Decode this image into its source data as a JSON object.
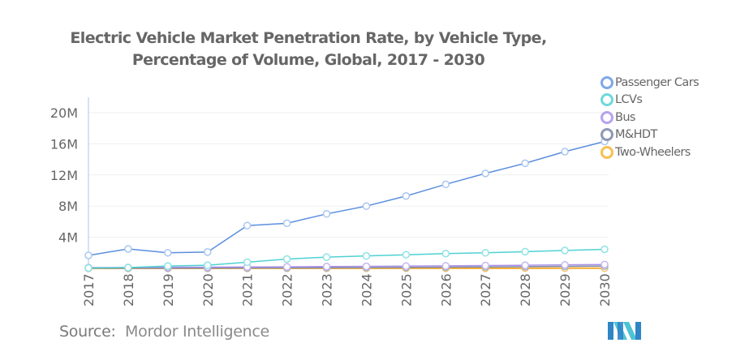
{
  "chart_data": {
    "type": "line",
    "title": "Electric Vehicle Market Penetration Rate, by Vehicle Type,",
    "subtitle": "Percentage of Volume, Global, 2017 - 2030",
    "xlabel": "",
    "ylabel": "",
    "x": [
      "2017",
      "2018",
      "2019",
      "2020",
      "2021",
      "2022",
      "2023",
      "2024",
      "2025",
      "2026",
      "2027",
      "2028",
      "2029",
      "2030"
    ],
    "yticks": [
      4000000,
      8000000,
      12000000,
      16000000,
      20000000
    ],
    "ytick_labels": [
      "4M",
      "8M",
      "12M",
      "16M",
      "20M"
    ],
    "ylim": [
      0,
      22000000
    ],
    "grid": true,
    "legend_position": "right",
    "series": [
      {
        "name": "Passenger Cars",
        "color": "#5b8ede",
        "marker_color": "#a9c6f0",
        "values": [
          1670000,
          2500000,
          2000000,
          2100000,
          5500000,
          5800000,
          7000000,
          8000000,
          9300000,
          10800000,
          12200000,
          13500000,
          15000000,
          16300000
        ]
      },
      {
        "name": "LCVs",
        "color": "#4fd1d3",
        "marker_color": "#8ee3e4",
        "values": [
          50000,
          100000,
          300000,
          400000,
          800000,
          1200000,
          1450000,
          1600000,
          1750000,
          1900000,
          2000000,
          2150000,
          2300000,
          2450000
        ]
      },
      {
        "name": "Bus",
        "color": "#a991e8",
        "marker_color": "#c6b6f0",
        "values": [
          100000,
          120000,
          140000,
          160000,
          180000,
          200000,
          230000,
          260000,
          290000,
          320000,
          360000,
          400000,
          450000,
          500000
        ]
      },
      {
        "name": "M&HDT",
        "color": "#7f8aa8",
        "marker_color": "#a6adc2",
        "values": [
          20000,
          25000,
          30000,
          40000,
          50000,
          60000,
          80000,
          100000,
          120000,
          150000,
          180000,
          220000,
          260000,
          300000
        ]
      },
      {
        "name": "Two-Wheelers",
        "color": "#f5ab2e",
        "marker_color": "#f7c46e",
        "values": [
          5000,
          5000,
          6000,
          6000,
          7000,
          8000,
          9000,
          10000,
          12000,
          14000,
          16000,
          18000,
          20000,
          22000
        ]
      }
    ]
  },
  "legend": {
    "items": [
      {
        "label": "Passenger Cars",
        "color": "#7ea8e8"
      },
      {
        "label": "LCVs",
        "color": "#6fd8d9"
      },
      {
        "label": "Bus",
        "color": "#b6a3ee"
      },
      {
        "label": "M&HDT",
        "color": "#8f98b4"
      },
      {
        "label": "Two-Wheelers",
        "color": "#f8bf52"
      }
    ]
  },
  "footer": {
    "source_label": "Source:",
    "source_value": "Mordor Intelligence",
    "logo": "mordor-intelligence-logo"
  }
}
